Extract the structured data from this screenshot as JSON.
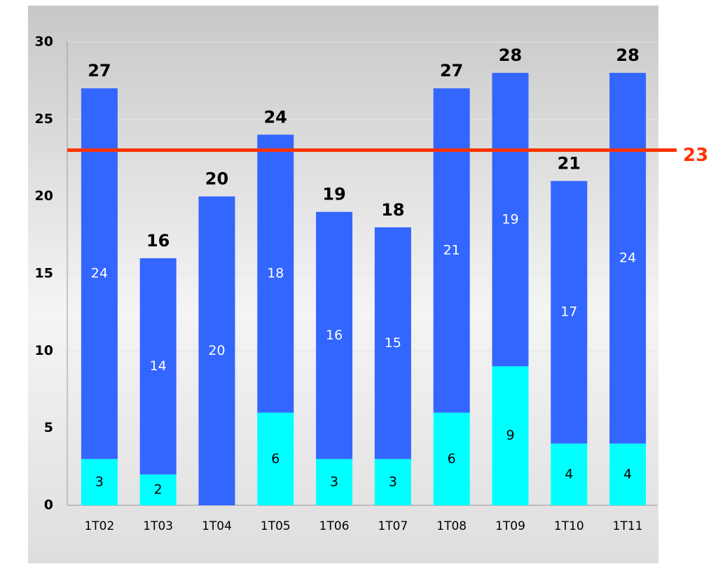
{
  "chart_data": {
    "type": "stacked_bar",
    "categories": [
      "1T02",
      "1T03",
      "1T04",
      "1T05",
      "1T06",
      "1T07",
      "1T08",
      "1T09",
      "1T10",
      "1T11"
    ],
    "series": [
      {
        "color": "#00ffff",
        "values": [
          3,
          2,
          null,
          6,
          3,
          3,
          6,
          9,
          4,
          4
        ]
      },
      {
        "color": "#3366ff",
        "values": [
          24,
          14,
          20,
          18,
          16,
          15,
          21,
          19,
          17,
          24
        ]
      }
    ],
    "totals": [
      27,
      16,
      20,
      24,
      19,
      18,
      27,
      28,
      21,
      28
    ],
    "reference_line": {
      "value": 23,
      "color": "#ff3300"
    },
    "ylim": [
      0,
      30
    ],
    "yticks": [
      0,
      5,
      10,
      15,
      20,
      25,
      30
    ],
    "grid": true
  }
}
